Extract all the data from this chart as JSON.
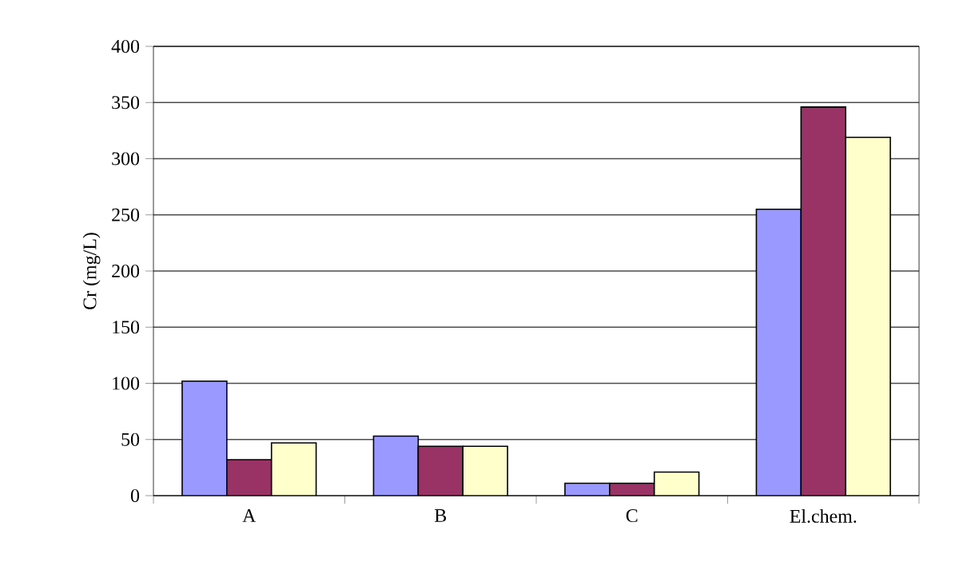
{
  "chart_data": {
    "type": "bar",
    "ylabel": "Cr (mg/L)",
    "categories": [
      "A",
      "B",
      "C",
      "El.chem."
    ],
    "series": [
      {
        "color": "#9999ff",
        "values": [
          102,
          53,
          11,
          255
        ]
      },
      {
        "color": "#993366",
        "values": [
          32,
          44,
          11,
          346
        ]
      },
      {
        "color": "#ffffcc",
        "values": [
          47,
          44,
          21,
          319
        ]
      }
    ],
    "ylim": [
      0,
      400
    ],
    "yticks": [
      0,
      50,
      100,
      150,
      200,
      250,
      300,
      350,
      400
    ],
    "grid": "y"
  }
}
